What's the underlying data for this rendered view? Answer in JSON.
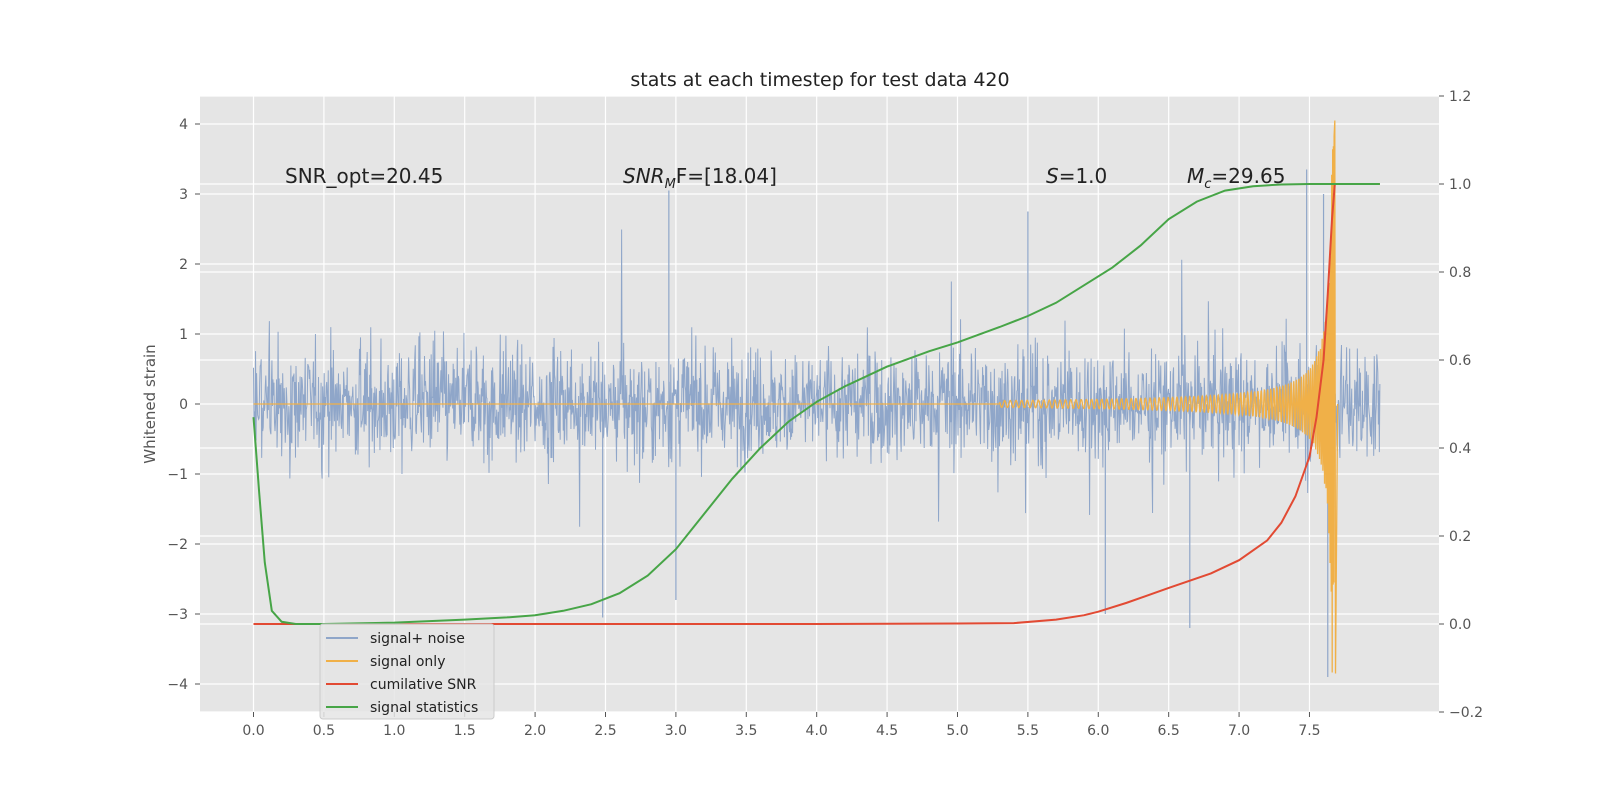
{
  "chart_data": {
    "type": "line",
    "title": "stats at each timestep for test data 420",
    "ylabel": "Whitened strain",
    "xlabel": "",
    "xlim": [
      -0.38,
      8.42
    ],
    "ylim": [
      -4.4,
      4.4
    ],
    "y2lim": [
      -0.2,
      1.2
    ],
    "xticks": [
      "0.0",
      "0.5",
      "1.0",
      "1.5",
      "2.0",
      "2.5",
      "3.0",
      "3.5",
      "4.0",
      "4.5",
      "5.0",
      "5.5",
      "6.0",
      "6.5",
      "7.0",
      "7.5"
    ],
    "yticks": [
      "4",
      "3",
      "2",
      "1",
      "0",
      "−1",
      "−2",
      "−3",
      "−4"
    ],
    "y2ticks": [
      "1.2",
      "1.0",
      "0.8",
      "0.6",
      "0.4",
      "0.2",
      "0.0",
      "−0.2"
    ],
    "grid": true,
    "legend_position": "lower-left",
    "annotations": {
      "snr_opt": "SNR_opt=20.45",
      "snr_mf_prefix": "SNR",
      "snr_mf_sub": "M",
      "snr_mf_suffix": "F=[18.04]",
      "s_prefix": "S",
      "s_suffix": "=1.0",
      "mc_prefix": "M",
      "mc_sub": "c",
      "mc_suffix": "=29.65"
    },
    "series": [
      {
        "name": "signal+ noise",
        "axis": "left",
        "color": "#8fa6c9",
        "style": "dense noisy band",
        "x_range": [
          0.0,
          8.0
        ],
        "typical_envelope": [
          -1.9,
          2.3
        ],
        "peaks": [
          {
            "x": 2.95,
            "y": 3.05
          },
          {
            "x": 5.5,
            "y": 2.75
          },
          {
            "x": 7.48,
            "y": 3.35
          },
          {
            "x": 7.6,
            "y": 3.0
          },
          {
            "x": 7.63,
            "y": -3.9
          },
          {
            "x": 6.65,
            "y": -3.2
          },
          {
            "x": 2.48,
            "y": -3.05
          },
          {
            "x": 6.05,
            "y": -3.0
          },
          {
            "x": 3.0,
            "y": -2.8
          }
        ]
      },
      {
        "name": "signal only",
        "axis": "left",
        "color": "#f0b048",
        "style": "chirp",
        "x_start": 5.3,
        "merger_x": 7.66,
        "peak_max": 4.05,
        "peak_min": -3.85
      },
      {
        "name": "cumilative SNR",
        "axis": "right",
        "color": "#e24a33",
        "x": [
          0.0,
          1.0,
          2.0,
          3.0,
          4.0,
          5.0,
          5.4,
          5.7,
          5.9,
          6.0,
          6.2,
          6.5,
          6.8,
          7.0,
          7.2,
          7.3,
          7.4,
          7.5,
          7.55,
          7.6,
          7.63,
          7.66,
          7.68,
          8.0
        ],
        "values": [
          0.0,
          0.0,
          0.0,
          0.0,
          0.0,
          0.001,
          0.002,
          0.01,
          0.02,
          0.028,
          0.048,
          0.082,
          0.115,
          0.145,
          0.19,
          0.23,
          0.29,
          0.38,
          0.47,
          0.6,
          0.75,
          0.92,
          1.0,
          1.0
        ]
      },
      {
        "name": "signal statistics",
        "axis": "right",
        "color": "#47a547",
        "x": [
          0.0,
          0.04,
          0.08,
          0.13,
          0.2,
          0.3,
          0.5,
          1.0,
          1.5,
          1.8,
          2.0,
          2.2,
          2.4,
          2.6,
          2.8,
          3.0,
          3.2,
          3.4,
          3.6,
          3.8,
          4.0,
          4.2,
          4.5,
          4.8,
          5.0,
          5.3,
          5.5,
          5.7,
          5.9,
          6.1,
          6.3,
          6.5,
          6.7,
          6.9,
          7.1,
          7.3,
          7.5,
          7.7,
          8.0
        ],
        "values": [
          0.47,
          0.3,
          0.14,
          0.03,
          0.005,
          0.0,
          0.0,
          0.003,
          0.01,
          0.015,
          0.02,
          0.03,
          0.045,
          0.07,
          0.11,
          0.17,
          0.25,
          0.33,
          0.4,
          0.46,
          0.505,
          0.54,
          0.585,
          0.62,
          0.64,
          0.675,
          0.7,
          0.73,
          0.77,
          0.81,
          0.86,
          0.92,
          0.96,
          0.985,
          0.995,
          0.999,
          1.0,
          1.0,
          1.0
        ]
      }
    ]
  }
}
